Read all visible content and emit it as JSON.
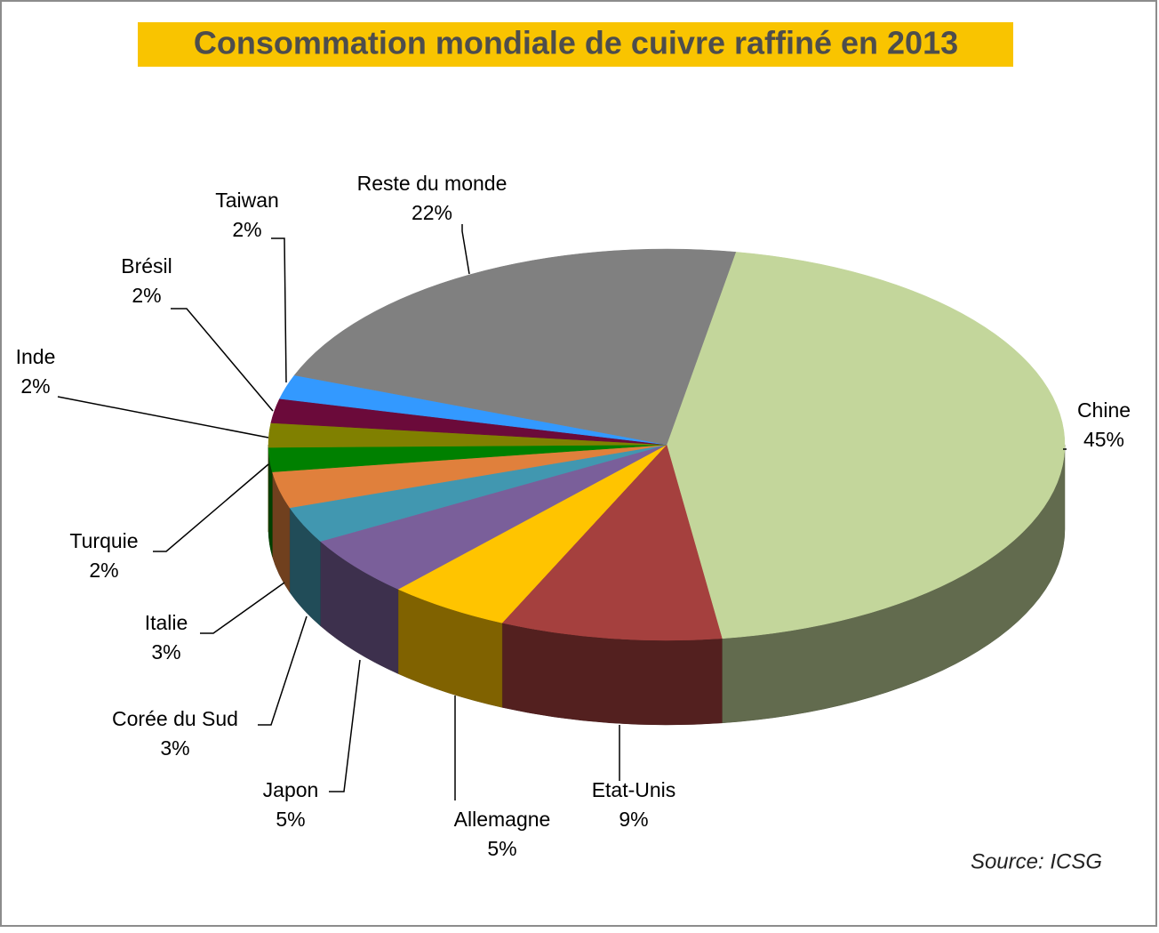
{
  "chart_data": {
    "type": "pie3d",
    "title": "Consommation mondiale de cuivre raffiné en 2013",
    "annotation": "Source: ICSG",
    "categories": [
      "Chine",
      "Etat-Unis",
      "Allemagne",
      "Japon",
      "Corée du Sud",
      "Italie",
      "Turquie",
      "Inde",
      "Brésil",
      "Taiwan",
      "Reste du monde"
    ],
    "values": [
      45,
      9,
      5,
      5,
      3,
      3,
      2,
      2,
      2,
      2,
      22
    ],
    "value_labels": [
      "45%",
      "9%",
      "5%",
      "5%",
      "3%",
      "3%",
      "2%",
      "2%",
      "2%",
      "2%",
      "22%"
    ],
    "colors": [
      "#c3d69b",
      "#a5403e",
      "#ffc400",
      "#7a5f9a",
      "#4197b0",
      "#e0803c",
      "#008000",
      "#808000",
      "#6b0a3a",
      "#3399ff",
      "#808080"
    ]
  }
}
